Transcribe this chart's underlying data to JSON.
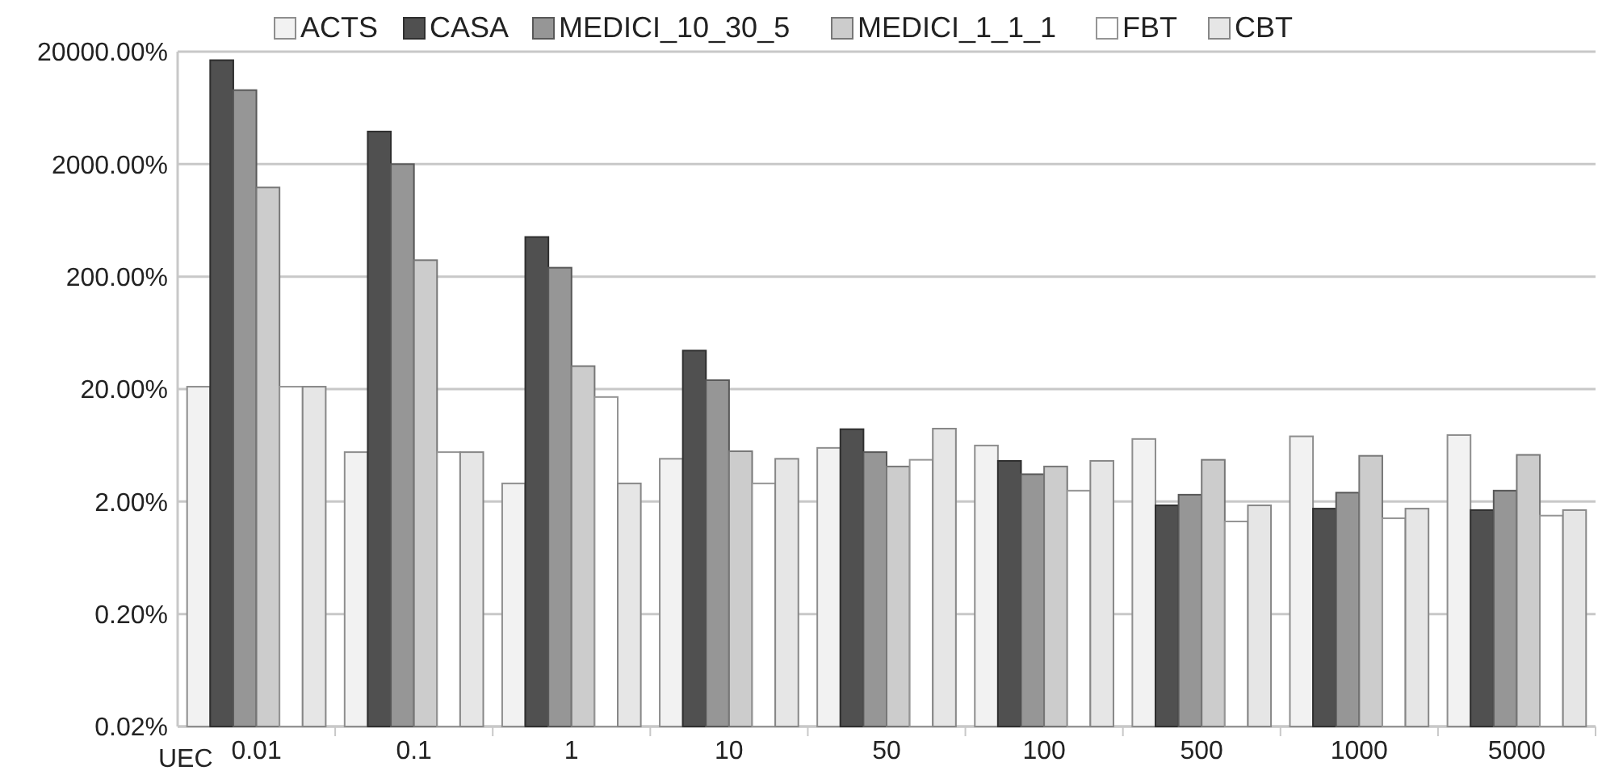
{
  "chart_data": {
    "type": "bar",
    "xlabel": "UEC",
    "categories": [
      "0.01",
      "0.1",
      "1",
      "10",
      "50",
      "100",
      "500",
      "1000",
      "5000"
    ],
    "series": [
      {
        "name": "ACTS",
        "color": "#f2f2f2",
        "values": [
          21,
          5.5,
          2.9,
          4.8,
          6.0,
          6.3,
          7.2,
          7.6,
          7.8
        ]
      },
      {
        "name": "CASA",
        "color": "#505050",
        "values": [
          16800,
          3900,
          450,
          44,
          8.8,
          4.6,
          1.85,
          1.73,
          1.68
        ]
      },
      {
        "name": "MEDICI_10_30_5",
        "color": "#969696",
        "values": [
          9100,
          2000,
          240,
          24,
          5.5,
          3.5,
          2.3,
          2.4,
          2.5
        ]
      },
      {
        "name": "MEDICI_1_1_1",
        "color": "#cccccc",
        "values": [
          1240,
          280,
          32,
          5.6,
          4.1,
          4.1,
          4.7,
          5.1,
          5.2
        ]
      },
      {
        "name": "FBT",
        "color": "#ffffff",
        "values": [
          21,
          5.5,
          17,
          2.9,
          4.7,
          2.5,
          1.33,
          1.42,
          1.5
        ]
      },
      {
        "name": "CBT",
        "color": "#e6e6e6",
        "values": [
          21,
          5.5,
          2.9,
          4.8,
          8.9,
          4.6,
          1.85,
          1.73,
          1.68
        ]
      }
    ],
    "log": true,
    "ylim": [
      0.02,
      20000
    ],
    "yticks": [
      {
        "value": 0.02,
        "label": "0.02%"
      },
      {
        "value": 0.2,
        "label": "0.20%"
      },
      {
        "value": 2,
        "label": "2.00%"
      },
      {
        "value": 20,
        "label": "20.00%"
      },
      {
        "value": 200,
        "label": "200.00%"
      },
      {
        "value": 2000,
        "label": "2000.00%"
      },
      {
        "value": 20000,
        "label": "20000.00%"
      }
    ],
    "grid": "y",
    "legend": "top"
  }
}
